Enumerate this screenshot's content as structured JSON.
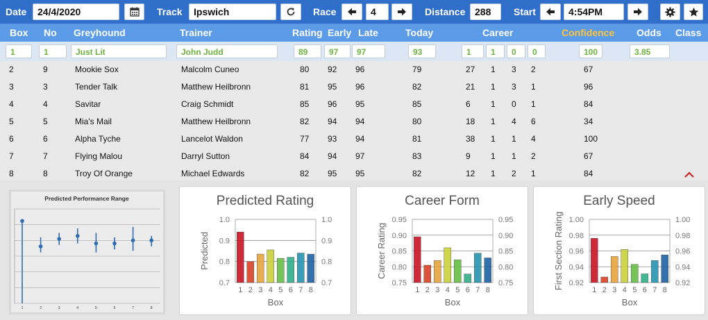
{
  "toolbar": {
    "date_label": "Date",
    "date_value": "24/4/2020",
    "track_label": "Track",
    "track_value": "Ipswich",
    "race_label": "Race",
    "race_value": "4",
    "distance_label": "Distance",
    "distance_value": "288",
    "start_label": "Start",
    "start_value": "4:54PM"
  },
  "columns": {
    "box": "Box",
    "no": "No",
    "greyhound": "Greyhound",
    "trainer": "Trainer",
    "rating": "Rating",
    "early": "Early",
    "late": "Late",
    "today": "Today",
    "career": "Career",
    "confidence": "Confidence",
    "odds": "Odds",
    "class": "Class"
  },
  "selected": {
    "box": "1",
    "no": "1",
    "greyhound": "Just Lit",
    "trainer": "John Judd",
    "rating": "89",
    "early": "97",
    "late": "97",
    "today": "93",
    "career": [
      "1",
      "1",
      "0",
      "0"
    ],
    "confidence": "100",
    "odds": "3.85"
  },
  "runners": [
    {
      "box": "2",
      "no": "9",
      "greyhound": "Mookie Sox",
      "trainer": "Malcolm Cuneo",
      "rating": "80",
      "early": "92",
      "late": "96",
      "today": "79",
      "c1": "27",
      "c2": "1",
      "c3": "3",
      "c4": "2",
      "confidence": "67"
    },
    {
      "box": "3",
      "no": "3",
      "greyhound": "Tender Talk",
      "trainer": "Matthew Heilbronn",
      "rating": "81",
      "early": "95",
      "late": "96",
      "today": "82",
      "c1": "21",
      "c2": "1",
      "c3": "3",
      "c4": "1",
      "confidence": "96"
    },
    {
      "box": "4",
      "no": "4",
      "greyhound": "Savitar",
      "trainer": "Craig Schmidt",
      "rating": "85",
      "early": "96",
      "late": "95",
      "today": "85",
      "c1": "6",
      "c2": "1",
      "c3": "0",
      "c4": "1",
      "confidence": "84"
    },
    {
      "box": "5",
      "no": "5",
      "greyhound": "Mia's Mail",
      "trainer": "Matthew Heilbronn",
      "rating": "82",
      "early": "94",
      "late": "94",
      "today": "80",
      "c1": "18",
      "c2": "1",
      "c3": "4",
      "c4": "6",
      "confidence": "34"
    },
    {
      "box": "6",
      "no": "6",
      "greyhound": "Alpha Tyche",
      "trainer": "Lancelot Waldon",
      "rating": "77",
      "early": "93",
      "late": "94",
      "today": "81",
      "c1": "38",
      "c2": "1",
      "c3": "1",
      "c4": "4",
      "confidence": "100"
    },
    {
      "box": "7",
      "no": "7",
      "greyhound": "Flying Malou",
      "trainer": "Darryl Sutton",
      "rating": "84",
      "early": "94",
      "late": "97",
      "today": "83",
      "c1": "9",
      "c2": "1",
      "c3": "1",
      "c4": "2",
      "confidence": "67"
    },
    {
      "box": "8",
      "no": "8",
      "greyhound": "Troy Of Orange",
      "trainer": "Michael Edwards",
      "rating": "82",
      "early": "95",
      "late": "95",
      "today": "82",
      "c1": "12",
      "c2": "1",
      "c3": "2",
      "c4": "1",
      "confidence": "84"
    }
  ],
  "icons": {
    "calendar": "calendar-icon",
    "refresh": "refresh-icon",
    "prev": "arrow-left-icon",
    "next": "arrow-right-icon",
    "settings": "gear-icon",
    "favorite": "star-icon",
    "collapse": "chevron-up-icon"
  },
  "colors": {
    "topbar": "#2f6fc9",
    "header": "#5b9be8",
    "confidence_header": "#ffc43c",
    "selected_text": "#6db33f",
    "collapse_icon": "#c62828"
  },
  "chart_data": [
    {
      "type": "scatter",
      "title": "Predicted Performance Range",
      "categories": [
        "1",
        "2",
        "3",
        "4",
        "5",
        "6",
        "7",
        "8"
      ],
      "points": [
        0.92,
        0.75,
        0.8,
        0.82,
        0.77,
        0.77,
        0.79,
        0.79
      ],
      "range_high": [
        0.93,
        0.81,
        0.84,
        0.87,
        0.84,
        0.81,
        0.88,
        0.82
      ],
      "range_low": [
        0.37,
        0.71,
        0.76,
        0.77,
        0.71,
        0.73,
        0.72,
        0.75
      ],
      "ylim": [
        0.37,
        1.0
      ],
      "grid": true
    },
    {
      "type": "bar",
      "title": "Predicted Rating",
      "xlabel": "Box",
      "ylabel": "Predicted",
      "categories": [
        "1",
        "2",
        "3",
        "4",
        "5",
        "6",
        "7",
        "8"
      ],
      "values": [
        0.94,
        0.8,
        0.835,
        0.855,
        0.815,
        0.82,
        0.84,
        0.835
      ],
      "ylim": [
        0.7,
        1.0
      ],
      "yticks": [
        "0.7",
        "0.8",
        "0.9",
        "1.0"
      ],
      "grid": true
    },
    {
      "type": "bar",
      "title": "Career Form",
      "xlabel": "Box",
      "ylabel": "Career Rating",
      "categories": [
        "1",
        "2",
        "3",
        "4",
        "5",
        "6",
        "7",
        "8"
      ],
      "values": [
        0.895,
        0.805,
        0.82,
        0.86,
        0.822,
        0.777,
        0.843,
        0.828
      ],
      "ylim": [
        0.75,
        0.95
      ],
      "yticks": [
        "0.75",
        "0.80",
        "0.85",
        "0.90",
        "0.95"
      ],
      "grid": true
    },
    {
      "type": "bar",
      "title": "Early Speed",
      "xlabel": "Box",
      "ylabel": "First Section Rating",
      "categories": [
        "1",
        "2",
        "3",
        "4",
        "5",
        "6",
        "7",
        "8"
      ],
      "values": [
        0.976,
        0.927,
        0.953,
        0.962,
        0.943,
        0.931,
        0.948,
        0.955
      ],
      "ylim": [
        0.92,
        1.0
      ],
      "yticks": [
        "0.92",
        "0.94",
        "0.96",
        "0.98",
        "1.00"
      ],
      "grid": true
    }
  ]
}
